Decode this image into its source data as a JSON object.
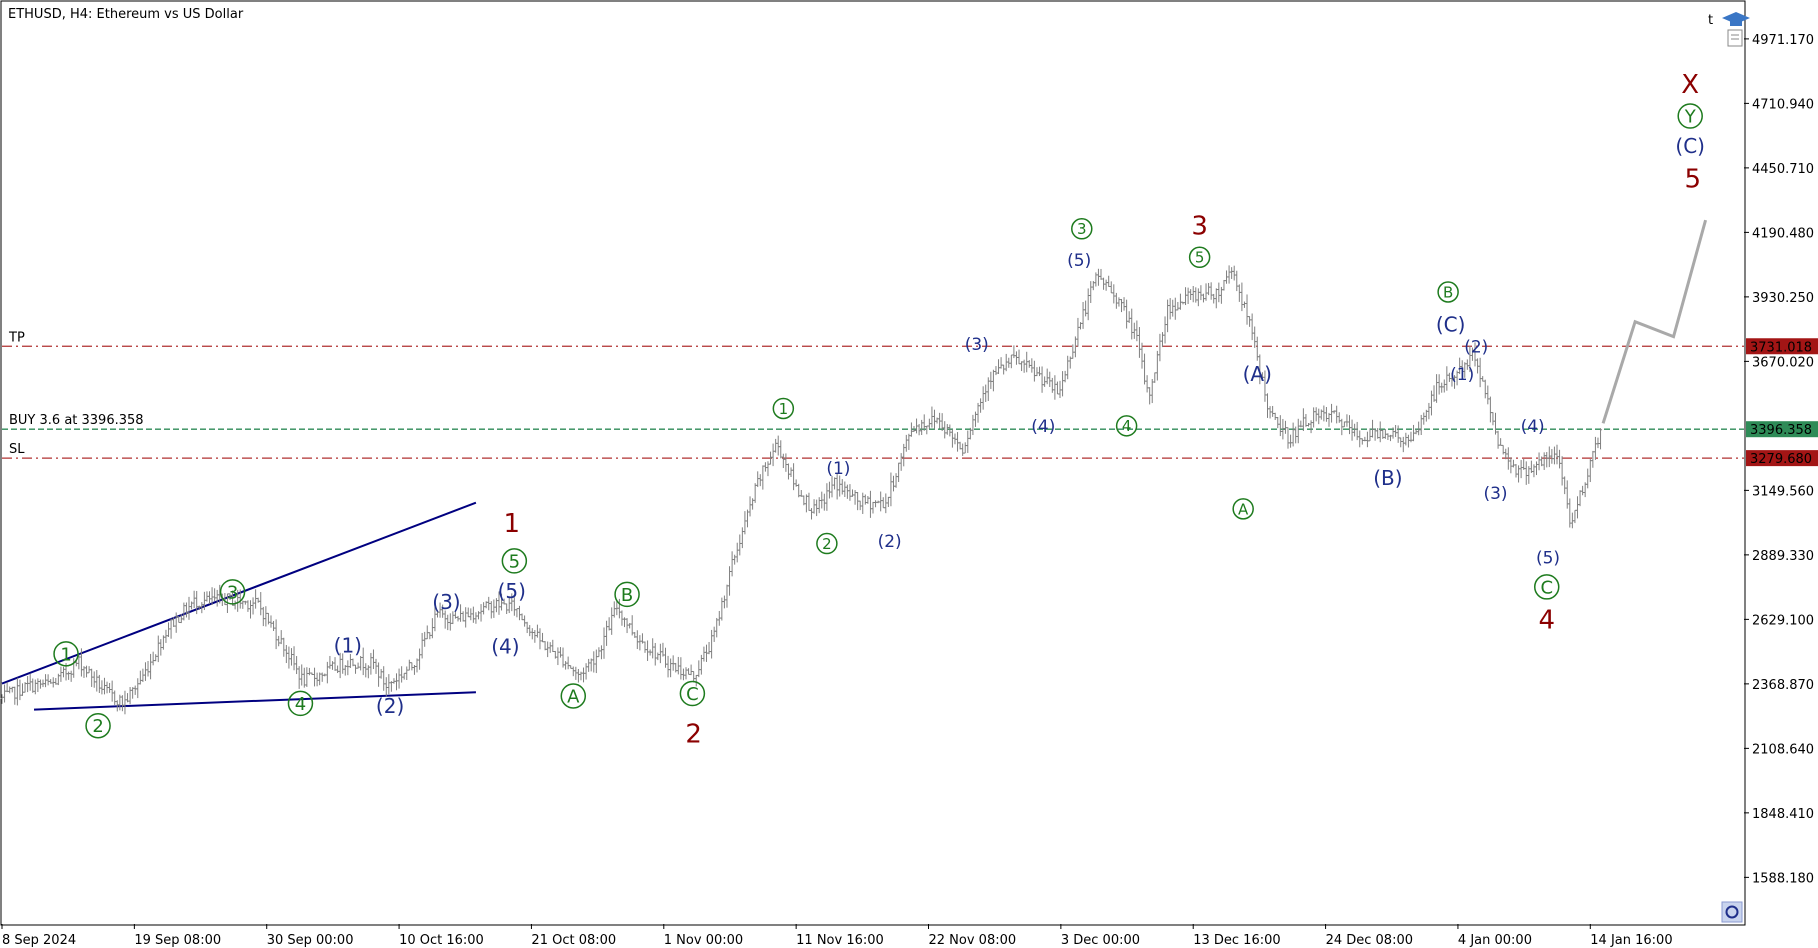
{
  "header": {
    "symbol_title": "ETHUSD, H4:  Ethereum vs US Dollar",
    "top_right_letter": "t"
  },
  "colors": {
    "candle": "#7f7f7f",
    "wedge": "#000080",
    "green": "#1e7b1e",
    "blue": "#1f2f8a",
    "darkred": "#8b0000",
    "tp_sl_line": "#b03030",
    "entry_line": "#2e8b57",
    "projection": "#a9a9a9"
  },
  "chart_data": {
    "type": "candlestick",
    "title": "ETHUSD, H4:  Ethereum vs US Dollar",
    "ylim": [
      1400,
      5120
    ],
    "y_ticks": [
      "4971.170",
      "4710.940",
      "4450.710",
      "4190.480",
      "3930.250",
      "3670.020",
      "3149.560",
      "2889.330",
      "2629.100",
      "2368.870",
      "2108.640",
      "1848.410",
      "1588.180"
    ],
    "x_ticks": [
      "8 Sep 2024",
      "19 Sep 08:00",
      "30 Sep 00:00",
      "10 Oct 16:00",
      "21 Oct 08:00",
      "1 Nov 00:00",
      "11 Nov 16:00",
      "22 Nov 08:00",
      "3 Dec 00:00",
      "13 Dec 16:00",
      "24 Dec 08:00",
      "4 Jan 00:00",
      "14 Jan 16:00"
    ],
    "series": [
      {
        "values": [
          {
            "t": 0,
            "v": 2310
          },
          {
            "t": 2,
            "v": 2360
          },
          {
            "t": 4,
            "v": 2370
          },
          {
            "t": 6,
            "v": 2460
          },
          {
            "t": 8,
            "v": 2340
          },
          {
            "t": 9.5,
            "v": 2290
          },
          {
            "t": 11,
            "v": 2400
          },
          {
            "t": 13,
            "v": 2600
          },
          {
            "t": 15,
            "v": 2700
          },
          {
            "t": 17.5,
            "v": 2710
          },
          {
            "t": 20,
            "v": 2690
          },
          {
            "t": 22,
            "v": 2520
          },
          {
            "t": 23.5,
            "v": 2380
          },
          {
            "t": 25,
            "v": 2410
          },
          {
            "t": 27,
            "v": 2460
          },
          {
            "t": 29,
            "v": 2450
          },
          {
            "t": 30,
            "v": 2360
          },
          {
            "t": 32,
            "v": 2440
          },
          {
            "t": 34,
            "v": 2650
          },
          {
            "t": 35.5,
            "v": 2630
          },
          {
            "t": 37,
            "v": 2660
          },
          {
            "t": 38.5,
            "v": 2690
          },
          {
            "t": 40,
            "v": 2680
          },
          {
            "t": 42,
            "v": 2540
          },
          {
            "t": 44,
            "v": 2460
          },
          {
            "t": 45,
            "v": 2400
          },
          {
            "t": 46.5,
            "v": 2490
          },
          {
            "t": 48,
            "v": 2680
          },
          {
            "t": 49.5,
            "v": 2560
          },
          {
            "t": 52,
            "v": 2450
          },
          {
            "t": 54,
            "v": 2400
          },
          {
            "t": 55.5,
            "v": 2550
          },
          {
            "t": 57,
            "v": 2850
          },
          {
            "t": 59,
            "v": 3180
          },
          {
            "t": 60.5,
            "v": 3340
          },
          {
            "t": 62,
            "v": 3160
          },
          {
            "t": 63.5,
            "v": 3060
          },
          {
            "t": 65,
            "v": 3180
          },
          {
            "t": 67,
            "v": 3100
          },
          {
            "t": 69,
            "v": 3100
          },
          {
            "t": 71,
            "v": 3400
          },
          {
            "t": 73,
            "v": 3440
          },
          {
            "t": 75,
            "v": 3320
          },
          {
            "t": 77,
            "v": 3600
          },
          {
            "t": 79,
            "v": 3680
          },
          {
            "t": 81,
            "v": 3610
          },
          {
            "t": 82.5,
            "v": 3540
          },
          {
            "t": 84,
            "v": 3800
          },
          {
            "t": 85.5,
            "v": 4020
          },
          {
            "t": 87,
            "v": 3930
          },
          {
            "t": 88.5,
            "v": 3780
          },
          {
            "t": 89.5,
            "v": 3520
          },
          {
            "t": 91,
            "v": 3880
          },
          {
            "t": 93,
            "v": 3940
          },
          {
            "t": 95,
            "v": 3950
          },
          {
            "t": 96,
            "v": 4050
          },
          {
            "t": 97.5,
            "v": 3800
          },
          {
            "t": 99,
            "v": 3450
          },
          {
            "t": 100.5,
            "v": 3360
          },
          {
            "t": 102,
            "v": 3440
          },
          {
            "t": 104,
            "v": 3450
          },
          {
            "t": 106,
            "v": 3360
          },
          {
            "t": 108,
            "v": 3390
          },
          {
            "t": 110,
            "v": 3340
          },
          {
            "t": 112,
            "v": 3560
          },
          {
            "t": 114,
            "v": 3640
          },
          {
            "t": 115,
            "v": 3700
          },
          {
            "t": 116,
            "v": 3500
          },
          {
            "t": 117,
            "v": 3320
          },
          {
            "t": 118.5,
            "v": 3220
          },
          {
            "t": 120,
            "v": 3260
          },
          {
            "t": 121.5,
            "v": 3290
          },
          {
            "t": 122.5,
            "v": 3010
          },
          {
            "t": 123.5,
            "v": 3180
          },
          {
            "t": 125,
            "v": 3420
          }
        ]
      }
    ],
    "wedge_lines": [
      {
        "from": [
          0,
          2370
        ],
        "to": [
          37,
          3100
        ]
      },
      {
        "from": [
          2.5,
          2265
        ],
        "to": [
          37,
          2335
        ]
      }
    ],
    "levels": [
      {
        "label": "TP",
        "price_label": "3731.018",
        "value": 3731.018
      },
      {
        "label": "BUY 3.6 at 3396.358",
        "price_label": "3396.358",
        "value": 3396.358
      },
      {
        "label": "SL",
        "price_label": "3279.680",
        "value": 3279.68
      }
    ],
    "projection": [
      [
        125,
        3420
      ],
      [
        127.5,
        3830
      ],
      [
        130.5,
        3770
      ],
      [
        133,
        4240
      ]
    ],
    "wave_labels": [
      {
        "text": "1",
        "t": 5,
        "v": 2490,
        "style": "gc"
      },
      {
        "text": "2",
        "t": 7.5,
        "v": 2200,
        "style": "gc"
      },
      {
        "text": "3",
        "t": 18,
        "v": 2740,
        "style": "gc"
      },
      {
        "text": "4",
        "t": 23.3,
        "v": 2290,
        "style": "gc"
      },
      {
        "text": "(1)",
        "t": 27,
        "v": 2525,
        "style": "b"
      },
      {
        "text": "(2)",
        "t": 30.3,
        "v": 2280,
        "style": "b"
      },
      {
        "text": "(3)",
        "t": 34.7,
        "v": 2700,
        "style": "b"
      },
      {
        "text": "(4)",
        "t": 39.3,
        "v": 2520,
        "style": "b"
      },
      {
        "text": "(5)",
        "t": 39.8,
        "v": 2745,
        "style": "b"
      },
      {
        "text": "5",
        "t": 40,
        "v": 2865,
        "style": "gc"
      },
      {
        "text": "1",
        "t": 39.8,
        "v": 3020,
        "style": "r"
      },
      {
        "text": "A",
        "t": 44.6,
        "v": 2320,
        "style": "gc"
      },
      {
        "text": "B",
        "t": 48.8,
        "v": 2730,
        "style": "gc"
      },
      {
        "text": "C",
        "t": 53.9,
        "v": 2330,
        "style": "gc"
      },
      {
        "text": "2",
        "t": 54,
        "v": 2170,
        "style": "r"
      },
      {
        "text": "1",
        "t": 61,
        "v": 3480,
        "style": "gcs"
      },
      {
        "text": "(1)",
        "t": 65.3,
        "v": 3240,
        "style": "bs"
      },
      {
        "text": "2",
        "t": 64.4,
        "v": 2935,
        "style": "gcs"
      },
      {
        "text": "(2)",
        "t": 69.3,
        "v": 2945,
        "style": "bs"
      },
      {
        "text": "(3)",
        "t": 76.1,
        "v": 3740,
        "style": "bs"
      },
      {
        "text": "(4)",
        "t": 81.3,
        "v": 3410,
        "style": "bs"
      },
      {
        "text": "(5)",
        "t": 84.1,
        "v": 4080,
        "style": "bs"
      },
      {
        "text": "3",
        "t": 84.3,
        "v": 4205,
        "style": "gcs"
      },
      {
        "text": "4",
        "t": 87.8,
        "v": 3410,
        "style": "gcs"
      },
      {
        "text": "5",
        "t": 93.5,
        "v": 4090,
        "style": "gcs"
      },
      {
        "text": "3",
        "t": 93.5,
        "v": 4220,
        "style": "r"
      },
      {
        "text": "(A)",
        "t": 98,
        "v": 3620,
        "style": "b"
      },
      {
        "text": "A",
        "t": 96.9,
        "v": 3075,
        "style": "gcs"
      },
      {
        "text": "(B)",
        "t": 108.2,
        "v": 3200,
        "style": "b"
      },
      {
        "text": "B",
        "t": 112.9,
        "v": 3950,
        "style": "gcs"
      },
      {
        "text": "(C)",
        "t": 113.1,
        "v": 3820,
        "style": "b"
      },
      {
        "text": "(2)",
        "t": 115.1,
        "v": 3730,
        "style": "bs"
      },
      {
        "text": "(1)",
        "t": 114,
        "v": 3620,
        "style": "bs"
      },
      {
        "text": "(3)",
        "t": 116.6,
        "v": 3140,
        "style": "bs"
      },
      {
        "text": "(4)",
        "t": 119.5,
        "v": 3410,
        "style": "bs"
      },
      {
        "text": "(5)",
        "t": 120.7,
        "v": 2880,
        "style": "bs"
      },
      {
        "text": "C",
        "t": 120.6,
        "v": 2760,
        "style": "gc"
      },
      {
        "text": "4",
        "t": 120.6,
        "v": 2630,
        "style": "r"
      },
      {
        "text": "X",
        "t": 131.8,
        "v": 4790,
        "style": "r"
      },
      {
        "text": "Y",
        "t": 131.8,
        "v": 4660,
        "style": "gc"
      },
      {
        "text": "(C)",
        "t": 131.8,
        "v": 4540,
        "style": "b"
      },
      {
        "text": "5",
        "t": 132,
        "v": 4410,
        "style": "r"
      }
    ]
  }
}
